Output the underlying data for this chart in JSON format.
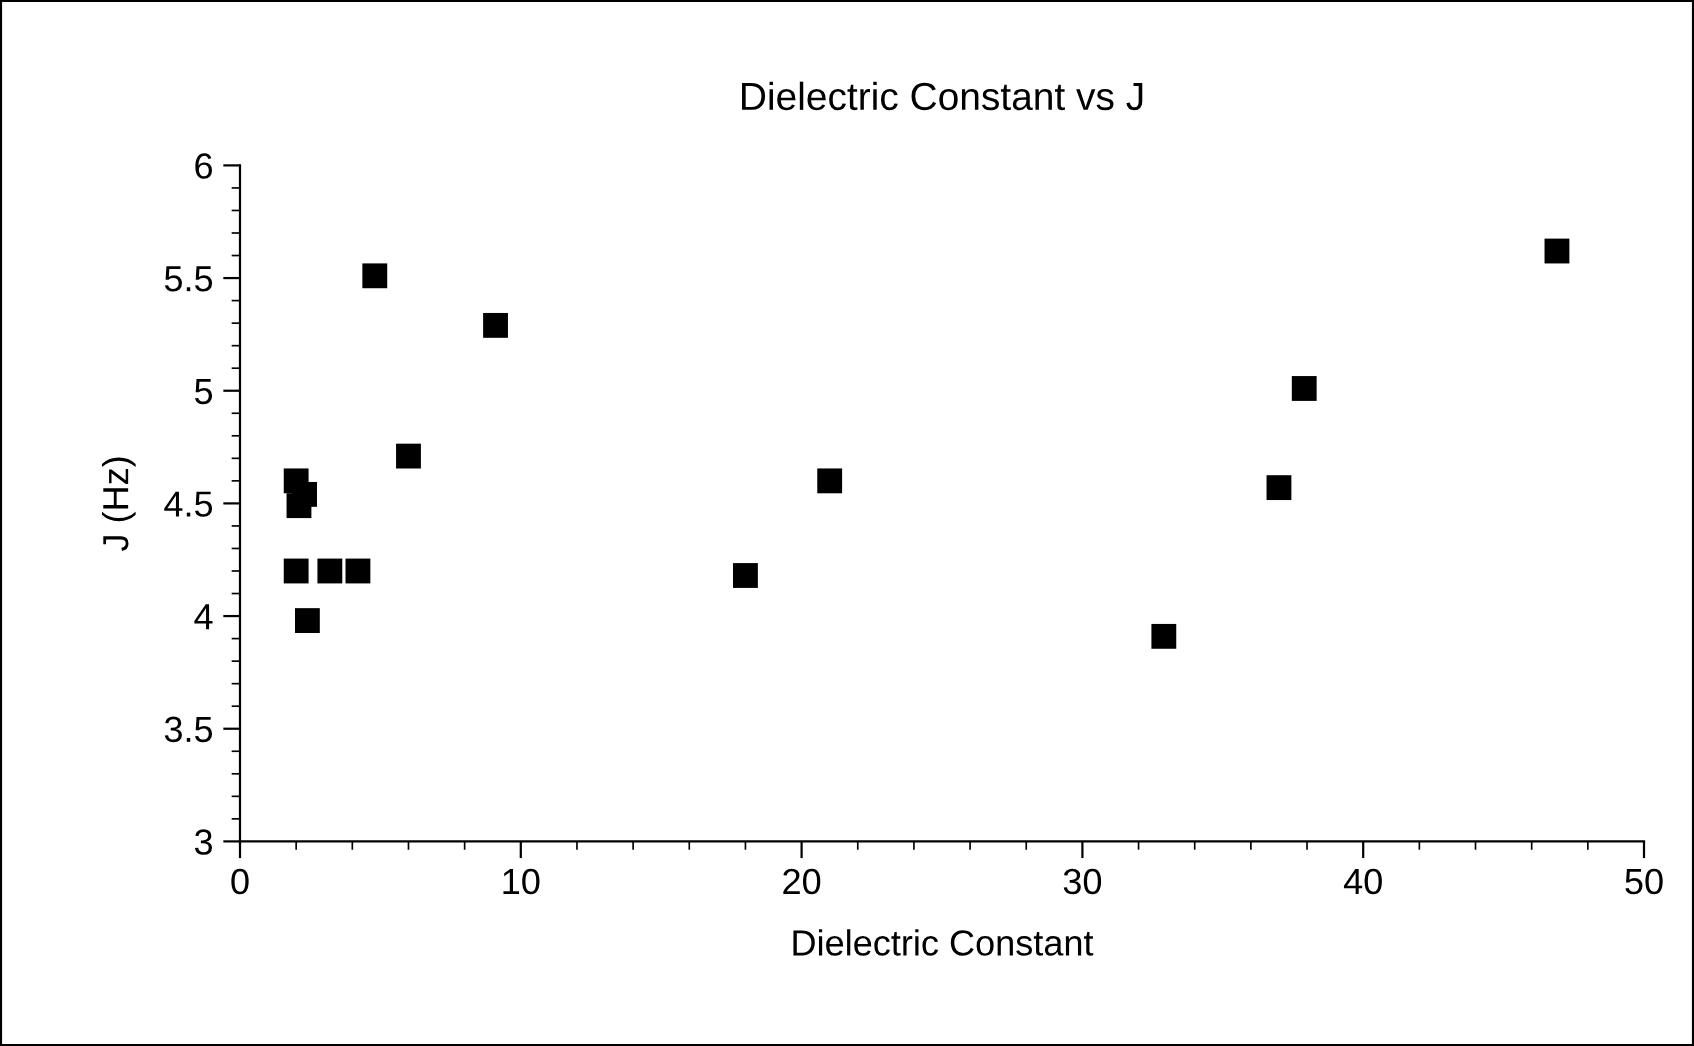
{
  "chart_data": {
    "type": "scatter",
    "title": "Dielectric Constant vs J",
    "xlabel": "Dielectric Constant",
    "ylabel": "J (Hz)",
    "x": [
      4.8,
      9.1,
      6.0,
      2.0,
      2.3,
      2.1,
      2.0,
      3.2,
      4.2,
      2.4,
      18.0,
      21.0,
      32.9,
      37.0,
      37.9,
      46.9
    ],
    "series": [
      {
        "color": "#000000",
        "values": [
          5.51,
          5.29,
          4.71,
          4.6,
          4.54,
          4.49,
          4.2,
          4.2,
          4.2,
          3.98,
          4.18,
          4.6,
          3.91,
          4.57,
          5.01,
          5.62
        ]
      }
    ],
    "marker": "square",
    "grid": false,
    "legend": false,
    "xlim": [
      0,
      50
    ],
    "xticks": [
      0,
      10,
      20,
      30,
      40,
      50
    ],
    "ylim": [
      3,
      6
    ],
    "yticks": [
      3,
      3.5,
      4,
      4.5,
      5,
      5.5,
      6
    ]
  }
}
